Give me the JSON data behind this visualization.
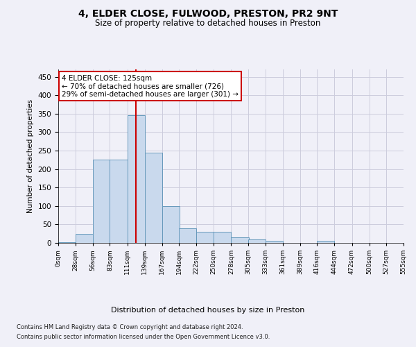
{
  "title1": "4, ELDER CLOSE, FULWOOD, PRESTON, PR2 9NT",
  "title2": "Size of property relative to detached houses in Preston",
  "xlabel": "Distribution of detached houses by size in Preston",
  "ylabel": "Number of detached properties",
  "bin_edges": [
    0,
    28,
    56,
    83,
    111,
    139,
    167,
    194,
    222,
    250,
    278,
    305,
    333,
    361,
    389,
    416,
    444,
    472,
    500,
    527,
    555
  ],
  "bin_labels": [
    "0sqm",
    "28sqm",
    "56sqm",
    "83sqm",
    "111sqm",
    "139sqm",
    "167sqm",
    "194sqm",
    "222sqm",
    "250sqm",
    "278sqm",
    "305sqm",
    "333sqm",
    "361sqm",
    "389sqm",
    "416sqm",
    "444sqm",
    "472sqm",
    "500sqm",
    "527sqm",
    "555sqm"
  ],
  "bar_heights": [
    2,
    25,
    225,
    225,
    345,
    245,
    100,
    40,
    30,
    30,
    15,
    10,
    5,
    0,
    0,
    5,
    0,
    0,
    0,
    0
  ],
  "bar_facecolor": "#c9d9ed",
  "bar_edgecolor": "#6699bb",
  "property_size": 125,
  "vline_color": "#cc0000",
  "annotation_line1": "4 ELDER CLOSE: 125sqm",
  "annotation_line2": "← 70% of detached houses are smaller (726)",
  "annotation_line3": "29% of semi-detached houses are larger (301) →",
  "annotation_boxcolor": "white",
  "annotation_edgecolor": "#cc0000",
  "ylim": [
    0,
    470
  ],
  "yticks": [
    0,
    50,
    100,
    150,
    200,
    250,
    300,
    350,
    400,
    450
  ],
  "footer1": "Contains HM Land Registry data © Crown copyright and database right 2024.",
  "footer2": "Contains public sector information licensed under the Open Government Licence v3.0.",
  "background_color": "#f0f0f8",
  "grid_color": "#ccccdd",
  "title1_fontsize": 10,
  "title2_fontsize": 8.5
}
